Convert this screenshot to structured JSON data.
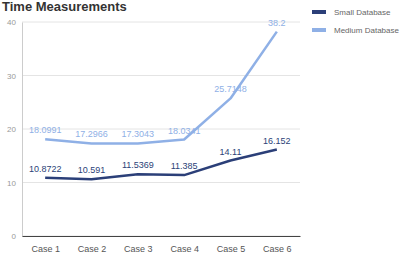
{
  "chart_data": {
    "type": "line",
    "title": "Time Measurements",
    "categories": [
      "Case 1",
      "Case 2",
      "Case 3",
      "Case 4",
      "Case 5",
      "Case 6"
    ],
    "series": [
      {
        "name": "Small Database",
        "color": "#2b3f78",
        "values": [
          10.8722,
          10.591,
          11.5369,
          11.385,
          14.11,
          16.152
        ]
      },
      {
        "name": "Medium Database",
        "color": "#8fb0e6",
        "values": [
          18.0991,
          17.2966,
          17.3043,
          18.0341,
          25.7148,
          38.2
        ]
      }
    ],
    "ylim": [
      0,
      40
    ],
    "yticks": [
      0,
      10,
      20,
      30,
      40
    ],
    "grid": true,
    "legend": "right",
    "data_labels": true
  }
}
